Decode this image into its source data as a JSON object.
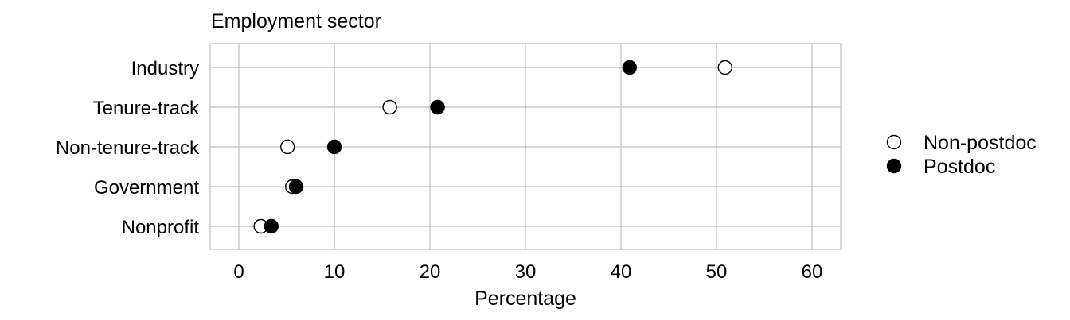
{
  "chart_data": {
    "type": "scatter",
    "title": "Employment sector",
    "xlabel": "Percentage",
    "ylabel": "",
    "xlim": [
      -3,
      63
    ],
    "x_ticks": [
      0,
      10,
      20,
      30,
      40,
      50,
      60
    ],
    "x_tick_labels": [
      "0",
      "10",
      "20",
      "30",
      "40",
      "50",
      "60"
    ],
    "categories": [
      "Industry",
      "Tenure-track",
      "Non-tenure-track",
      "Government",
      "Nonprofit"
    ],
    "grid": true,
    "legend_position": "right",
    "series": [
      {
        "name": "Non-postdoc",
        "marker": "open-circle",
        "color": "#000000",
        "values": [
          50.9,
          15.8,
          5.1,
          5.6,
          2.3
        ]
      },
      {
        "name": "Postdoc",
        "marker": "filled-circle",
        "color": "#000000",
        "values": [
          40.9,
          20.8,
          10.0,
          6.0,
          3.4
        ]
      }
    ]
  }
}
